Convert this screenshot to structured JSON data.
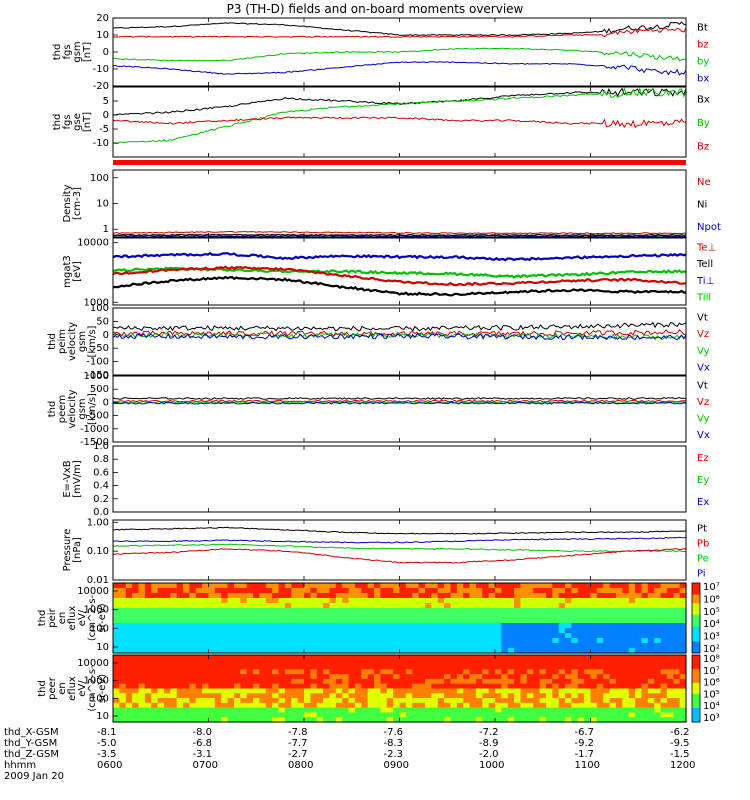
{
  "title": "P3 (TH-D) fields and on-board moments overview",
  "chart_data": [
    {
      "type": "line",
      "ylabel": [
        "thd",
        "fgs",
        "gsm",
        "[nT]"
      ],
      "ylim": [
        -20,
        20
      ],
      "yticks": [
        "20",
        "10",
        "0",
        "-10",
        "-20"
      ],
      "legend": [
        {
          "name": "Bt",
          "color": "#000000"
        },
        {
          "name": "bz",
          "color": "#d00000"
        },
        {
          "name": "by",
          "color": "#00c000"
        },
        {
          "name": "bx",
          "color": "#0000c0"
        }
      ],
      "series": [
        {
          "name": "Bt",
          "color": "#000000",
          "x": [
            0,
            0.1,
            0.2,
            0.3,
            0.4,
            0.5,
            0.6,
            0.7,
            0.8,
            0.85,
            0.9,
            0.95,
            1
          ],
          "y": [
            14,
            15,
            17,
            16,
            13,
            10,
            10,
            10,
            11,
            12,
            14,
            15,
            17
          ]
        },
        {
          "name": "bz",
          "color": "#d00000",
          "x": [
            0,
            0.1,
            0.2,
            0.3,
            0.4,
            0.5,
            0.6,
            0.7,
            0.8,
            0.85,
            0.9,
            0.95,
            1
          ],
          "y": [
            9,
            9,
            9,
            9,
            9,
            9,
            9,
            9,
            10,
            10,
            12,
            13,
            13
          ]
        },
        {
          "name": "by",
          "color": "#00c000",
          "x": [
            0,
            0.1,
            0.2,
            0.3,
            0.4,
            0.5,
            0.6,
            0.7,
            0.8,
            0.85,
            0.9,
            0.95,
            1
          ],
          "y": [
            -4,
            -5,
            -5,
            -1,
            0,
            0,
            2,
            2,
            1,
            0,
            -1,
            -3,
            -4
          ]
        },
        {
          "name": "bx",
          "color": "#0000c0",
          "x": [
            0,
            0.1,
            0.2,
            0.3,
            0.4,
            0.5,
            0.6,
            0.7,
            0.8,
            0.85,
            0.9,
            0.95,
            1
          ],
          "y": [
            -8,
            -10,
            -13,
            -12,
            -9,
            -6,
            -6,
            -7,
            -7,
            -8,
            -9,
            -12,
            -12
          ]
        }
      ]
    },
    {
      "type": "line",
      "ylabel": [
        "thd",
        "fgs",
        "gse",
        "[nT]"
      ],
      "ylim": [
        -15,
        10
      ],
      "yticks": [
        "5",
        "0",
        "-5",
        "-10"
      ],
      "yvals": [
        5,
        0,
        -5,
        -10
      ],
      "legend": [
        {
          "name": "Bx",
          "color": "#000000"
        },
        {
          "name": "By",
          "color": "#00c000"
        },
        {
          "name": "Bz",
          "color": "#d00000"
        }
      ],
      "series": [
        {
          "name": "Bx",
          "color": "#000000",
          "x": [
            0,
            0.1,
            0.2,
            0.3,
            0.4,
            0.5,
            0.6,
            0.7,
            0.8,
            0.9,
            1
          ],
          "y": [
            0,
            1,
            3,
            6,
            5,
            4,
            5,
            7,
            8,
            8,
            8
          ]
        },
        {
          "name": "By",
          "color": "#00c000",
          "x": [
            0,
            0.1,
            0.2,
            0.3,
            0.4,
            0.5,
            0.6,
            0.7,
            0.8,
            0.9,
            1
          ],
          "y": [
            -10,
            -9,
            -4,
            1,
            3,
            4,
            5,
            6,
            7,
            8,
            8
          ]
        },
        {
          "name": "Bz",
          "color": "#d00000",
          "x": [
            0,
            0.1,
            0.2,
            0.3,
            0.4,
            0.5,
            0.6,
            0.7,
            0.8,
            0.9,
            1
          ],
          "y": [
            -2,
            -3,
            -2,
            -1,
            -1,
            -1,
            -2,
            -2,
            -3,
            -3,
            -3
          ]
        }
      ]
    },
    {
      "type": "line",
      "ylabel": [
        "Density",
        "[cm-3]"
      ],
      "scale": "log",
      "ylim": [
        0.5,
        200
      ],
      "yticks": [
        "100",
        "10",
        "1"
      ],
      "yvals": [
        100,
        10,
        1
      ],
      "legend": [
        {
          "name": "Ne",
          "color": "#d00000"
        },
        {
          "name": "Ni",
          "color": "#000000"
        },
        {
          "name": "Npot",
          "color": "#0000c0"
        }
      ],
      "series": [
        {
          "name": "Ne",
          "color": "#d00000",
          "x": [
            0,
            0.2,
            0.4,
            0.6,
            0.8,
            1
          ],
          "y": [
            0.7,
            0.8,
            0.75,
            0.7,
            0.7,
            0.7
          ]
        },
        {
          "name": "Ni",
          "color": "#000000",
          "x": [
            0,
            0.2,
            0.4,
            0.6,
            0.8,
            1
          ],
          "y": [
            0.6,
            0.62,
            0.6,
            0.6,
            0.6,
            0.6
          ]
        },
        {
          "name": "Npot",
          "color": "#0000c0",
          "x": [
            0,
            0.2,
            0.4,
            0.6,
            0.8,
            1
          ],
          "y": [
            0.55,
            0.55,
            0.55,
            0.55,
            0.55,
            0.55
          ]
        }
      ]
    },
    {
      "type": "line",
      "ylabel": [
        "mgat3",
        "[eV]"
      ],
      "scale": "log",
      "ylim": [
        900,
        12000
      ],
      "yticks": [
        "10000",
        "1000"
      ],
      "yvals": [
        10000,
        1000
      ],
      "legend": [
        {
          "name": "Te⊥",
          "color": "#d00000"
        },
        {
          "name": "Tell",
          "color": "#000000"
        },
        {
          "name": "Ti⊥",
          "color": "#0000c0"
        },
        {
          "name": "Till",
          "color": "#00c000"
        }
      ],
      "series": [
        {
          "name": "Ti⊥",
          "color": "#0000c0",
          "x": [
            0,
            0.1,
            0.2,
            0.3,
            0.4,
            0.5,
            0.6,
            0.7,
            0.8,
            0.9,
            1
          ],
          "y": [
            5800,
            6200,
            6500,
            5500,
            6000,
            5800,
            5700,
            5200,
            5600,
            6000,
            6200
          ]
        },
        {
          "name": "Till",
          "color": "#00c000",
          "x": [
            0,
            0.1,
            0.2,
            0.3,
            0.4,
            0.5,
            0.6,
            0.7,
            0.8,
            0.9,
            1
          ],
          "y": [
            3400,
            3700,
            3500,
            3300,
            3300,
            3100,
            3000,
            2700,
            2900,
            3200,
            3300
          ]
        },
        {
          "name": "Te⊥",
          "color": "#d00000",
          "x": [
            0,
            0.1,
            0.2,
            0.3,
            0.4,
            0.5,
            0.6,
            0.7,
            0.8,
            0.9,
            1
          ],
          "y": [
            3000,
            3500,
            3800,
            3600,
            2800,
            2200,
            2000,
            2100,
            2300,
            2400,
            2100
          ]
        },
        {
          "name": "Tell",
          "color": "#000000",
          "x": [
            0,
            0.1,
            0.2,
            0.3,
            0.4,
            0.5,
            0.6,
            0.7,
            0.8,
            0.9,
            1
          ],
          "y": [
            1800,
            2300,
            2600,
            2400,
            1800,
            1400,
            1350,
            1500,
            1600,
            1500,
            1500
          ]
        }
      ]
    },
    {
      "type": "line",
      "ylabel": [
        "thd",
        "peim",
        "velocity",
        "gsm",
        "[km/s]"
      ],
      "ylim": [
        -150,
        100
      ],
      "yticks": [
        "100",
        "50",
        "0",
        "-50",
        "-100",
        "-150"
      ],
      "yvals": [
        100,
        50,
        0,
        -50,
        -100,
        -150
      ],
      "legend": [
        {
          "name": "Vt",
          "color": "#000000"
        },
        {
          "name": "Vz",
          "color": "#d00000"
        },
        {
          "name": "Vy",
          "color": "#00c000"
        },
        {
          "name": "Vx",
          "color": "#0000c0"
        }
      ],
      "series": [
        {
          "name": "Vt",
          "color": "#000000",
          "x": [
            0,
            0.25,
            0.5,
            0.75,
            1
          ],
          "y": [
            25,
            25,
            22,
            28,
            40
          ]
        },
        {
          "name": "Vz",
          "color": "#d00000",
          "x": [
            0,
            0.25,
            0.5,
            0.75,
            1
          ],
          "y": [
            5,
            5,
            3,
            5,
            10
          ]
        },
        {
          "name": "Vy",
          "color": "#00c000",
          "x": [
            0,
            0.25,
            0.5,
            0.75,
            1
          ],
          "y": [
            0,
            -2,
            0,
            -5,
            -10
          ]
        },
        {
          "name": "Vx",
          "color": "#0000c0",
          "x": [
            0,
            0.25,
            0.5,
            0.75,
            1
          ],
          "y": [
            -5,
            -8,
            -5,
            -8,
            -10
          ]
        }
      ]
    },
    {
      "type": "line",
      "ylabel": [
        "thd",
        "peem",
        "velocity",
        "gsm",
        "[km/s]"
      ],
      "ylim": [
        -1500,
        1000
      ],
      "yticks": [
        "1000",
        "500",
        "0",
        "-500",
        "-1000",
        "-1500"
      ],
      "yvals": [
        1000,
        500,
        0,
        -500,
        -1000,
        -1500
      ],
      "legend": [
        {
          "name": "Vt",
          "color": "#000000"
        },
        {
          "name": "Vz",
          "color": "#d00000"
        },
        {
          "name": "Vy",
          "color": "#00c000"
        },
        {
          "name": "Vx",
          "color": "#0000c0"
        }
      ],
      "series": [
        {
          "name": "Vt",
          "color": "#000000",
          "x": [
            0,
            0.5,
            1
          ],
          "y": [
            150,
            150,
            150
          ]
        },
        {
          "name": "Vz",
          "color": "#d00000",
          "x": [
            0,
            0.5,
            1
          ],
          "y": [
            50,
            50,
            50
          ]
        },
        {
          "name": "Vy",
          "color": "#00c000",
          "x": [
            0,
            0.5,
            1
          ],
          "y": [
            0,
            0,
            0
          ]
        },
        {
          "name": "Vx",
          "color": "#0000c0",
          "x": [
            0,
            0.5,
            1
          ],
          "y": [
            -30,
            -30,
            -30
          ]
        }
      ]
    },
    {
      "type": "line",
      "ylabel": [
        "E=-VxB",
        "[mV/m]"
      ],
      "ylim": [
        0,
        1
      ],
      "yticks": [
        "1.0",
        "0.8",
        "0.6",
        "0.4",
        "0.2",
        "0.0"
      ],
      "yvals": [
        1,
        0.8,
        0.6,
        0.4,
        0.2,
        0
      ],
      "legend": [
        {
          "name": "Ez",
          "color": "#d00000"
        },
        {
          "name": "Ey",
          "color": "#00c000"
        },
        {
          "name": "Ex",
          "color": "#0000c0"
        }
      ],
      "series": []
    },
    {
      "type": "line",
      "ylabel": [
        "Pressure",
        "[nPa]"
      ],
      "scale": "log",
      "ylim": [
        0.01,
        1.2
      ],
      "yticks": [
        "1.00",
        "0.10",
        "0.01"
      ],
      "yvals": [
        1,
        0.1,
        0.01
      ],
      "legend": [
        {
          "name": "Pt",
          "color": "#000000"
        },
        {
          "name": "Pb",
          "color": "#d00000"
        },
        {
          "name": "Pe",
          "color": "#00c000"
        },
        {
          "name": "Pi",
          "color": "#0000c0"
        }
      ],
      "series": [
        {
          "name": "Pt",
          "color": "#000000",
          "x": [
            0,
            0.1,
            0.2,
            0.3,
            0.4,
            0.5,
            0.6,
            0.7,
            0.8,
            0.9,
            1
          ],
          "y": [
            0.55,
            0.6,
            0.65,
            0.55,
            0.45,
            0.4,
            0.4,
            0.42,
            0.45,
            0.45,
            0.5
          ]
        },
        {
          "name": "Pi",
          "color": "#0000c0",
          "x": [
            0,
            0.1,
            0.2,
            0.3,
            0.4,
            0.5,
            0.6,
            0.7,
            0.8,
            0.9,
            1
          ],
          "y": [
            0.22,
            0.22,
            0.24,
            0.22,
            0.2,
            0.2,
            0.22,
            0.25,
            0.26,
            0.27,
            0.3
          ]
        },
        {
          "name": "Pe",
          "color": "#00c000",
          "x": [
            0,
            0.1,
            0.2,
            0.3,
            0.4,
            0.5,
            0.6,
            0.7,
            0.8,
            0.9,
            1
          ],
          "y": [
            0.15,
            0.16,
            0.17,
            0.15,
            0.13,
            0.12,
            0.12,
            0.11,
            0.1,
            0.1,
            0.1
          ]
        },
        {
          "name": "Pb",
          "color": "#d00000",
          "x": [
            0,
            0.1,
            0.2,
            0.3,
            0.4,
            0.5,
            0.6,
            0.7,
            0.8,
            0.9,
            1
          ],
          "y": [
            0.08,
            0.09,
            0.12,
            0.1,
            0.06,
            0.04,
            0.04,
            0.05,
            0.07,
            0.1,
            0.12
          ]
        }
      ]
    },
    {
      "type": "heatmap",
      "ylabel": [
        "thd",
        "peir",
        "en",
        "eflux",
        "eV/",
        "(cm^2-s-",
        "sr-eV)"
      ],
      "yticks": [
        "10000",
        "1000",
        "100",
        "10"
      ],
      "colorbar_ticks": [
        "10⁷",
        "10⁶",
        "10⁵",
        "10⁴",
        "10³",
        "10²"
      ]
    },
    {
      "type": "heatmap",
      "ylabel": [
        "thd",
        "peer",
        "en",
        "eflux",
        "eV/",
        "(cm^2-s-",
        "sr-eV)"
      ],
      "yticks": [
        "10000",
        "1000",
        "100",
        "10"
      ],
      "colorbar_ticks": [
        "10⁸",
        "10⁷",
        "10⁶",
        "10⁵",
        "10⁴",
        "10³"
      ]
    }
  ],
  "footer": {
    "rows": [
      {
        "label": "thd_X-GSM",
        "values": [
          "-8.1",
          "-8.0",
          "-7.8",
          "-7.6",
          "-7.2",
          "-6.7",
          "-6.2"
        ]
      },
      {
        "label": "thd_Y-GSM",
        "values": [
          "-5.0",
          "-6.8",
          "-7.7",
          "-8.3",
          "-8.9",
          "-9.2",
          "-9.5"
        ]
      },
      {
        "label": "thd_Z-GSM",
        "values": [
          "-3.5",
          "-3.1",
          "-2.7",
          "-2.3",
          "-2.0",
          "-1.7",
          "-1.5"
        ]
      },
      {
        "label": "hhmm",
        "values": [
          "0600",
          "0700",
          "0800",
          "0900",
          "1000",
          "1100",
          "1200"
        ]
      }
    ],
    "date": "2009 Jan 20"
  }
}
